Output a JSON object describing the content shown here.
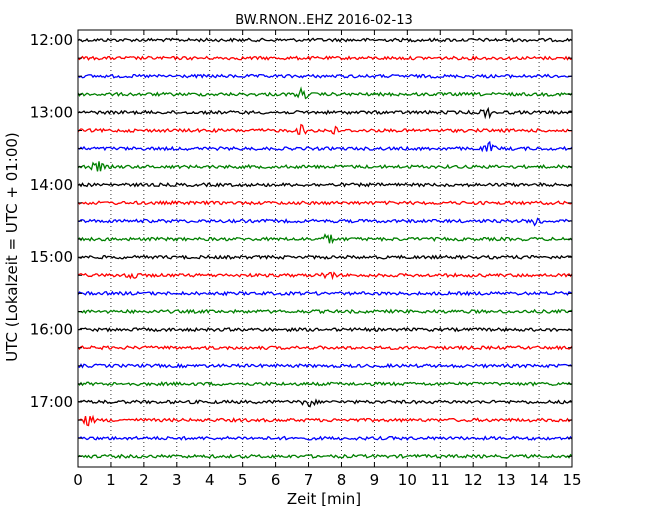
{
  "chart_data": {
    "type": "line",
    "title": "BW.RNON..EHZ 2016-02-13",
    "xlabel": "Zeit  [min]",
    "ylabel": "UTC (Lokalzeit = UTC + 01:00)",
    "xlim": [
      0,
      15
    ],
    "x_ticks": [
      "0",
      "1",
      "2",
      "3",
      "4",
      "5",
      "6",
      "7",
      "8",
      "9",
      "10",
      "11",
      "12",
      "13",
      "14",
      "15"
    ],
    "y_tick_labels": [
      "12:00",
      "13:00",
      "14:00",
      "15:00",
      "16:00",
      "17:00"
    ],
    "grid": true,
    "grid_style": "dotted vertical",
    "trace_colors": [
      "#000000",
      "#ff0000",
      "#0000ff",
      "#008000"
    ],
    "traces": [
      {
        "start": "12:00",
        "events": []
      },
      {
        "start": "12:15",
        "events": []
      },
      {
        "start": "12:30",
        "events": []
      },
      {
        "start": "12:45",
        "events": [
          6.8
        ]
      },
      {
        "start": "13:00",
        "events": [
          12.4
        ]
      },
      {
        "start": "13:15",
        "events": [
          6.8,
          7.7
        ]
      },
      {
        "start": "13:30",
        "events": [
          12.5
        ]
      },
      {
        "start": "13:45",
        "events": [
          0.6
        ]
      },
      {
        "start": "14:00",
        "events": []
      },
      {
        "start": "14:15",
        "events": []
      },
      {
        "start": "14:30",
        "events": [
          13.9
        ]
      },
      {
        "start": "14:45",
        "events": [
          7.6
        ]
      },
      {
        "start": "15:00",
        "events": []
      },
      {
        "start": "15:15",
        "events": [
          1.6,
          7.6
        ]
      },
      {
        "start": "15:30",
        "events": []
      },
      {
        "start": "15:45",
        "events": []
      },
      {
        "start": "16:00",
        "events": []
      },
      {
        "start": "16:15",
        "events": []
      },
      {
        "start": "16:30",
        "events": []
      },
      {
        "start": "16:45",
        "events": []
      },
      {
        "start": "17:00",
        "events": [
          7.0
        ]
      },
      {
        "start": "17:15",
        "events": [
          0.3
        ]
      },
      {
        "start": "17:30",
        "events": []
      },
      {
        "start": "17:45",
        "events": []
      }
    ]
  }
}
